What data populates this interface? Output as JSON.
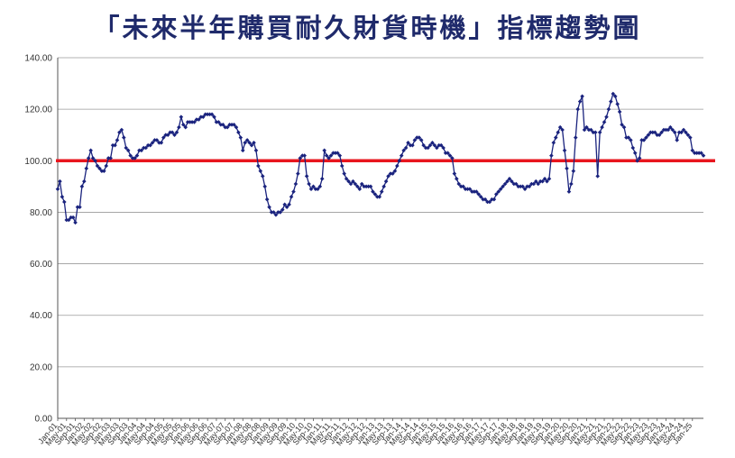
{
  "chart_data": {
    "type": "line",
    "title": "「未來半年購買耐久財貨時機」指標趨勢圖",
    "xlabel": "",
    "ylabel": "",
    "ylim": [
      0,
      140
    ],
    "y_ticks": [
      "0.00",
      "20.00",
      "40.00",
      "60.00",
      "80.00",
      "100.00",
      "120.00",
      "140.00"
    ],
    "x_tick_labels": [
      "Jan-01",
      "May-01",
      "Sep-01",
      "Jan-02",
      "May-02",
      "Sep-02",
      "Jan-03",
      "May-03",
      "Sep-03",
      "Jan-04",
      "May-04",
      "Sep-04",
      "Jan-05",
      "May-05",
      "Sep-05",
      "Jan-06",
      "May-06",
      "Sep-06",
      "Jan-07",
      "May-07",
      "Sep-07",
      "Jan-08",
      "May-08",
      "Sep-08",
      "Jan-09",
      "May-09",
      "Sep-09",
      "Jan-10",
      "May-10",
      "Sep-10",
      "Jan-11",
      "May-11",
      "Sep-11",
      "Jan-12",
      "May-12",
      "Sep-12",
      "Jan-13",
      "May-13",
      "Sep-13",
      "Jan-14",
      "May-14",
      "Sep-14",
      "Jan-15",
      "May-15",
      "Sep-15",
      "Jan-16",
      "May-16",
      "Sep-16",
      "Jan-17",
      "May-17",
      "Sep-17",
      "Jan-18",
      "May-18",
      "Sep-18",
      "Jan-19",
      "May-19",
      "Sep-19",
      "Jan-20",
      "May-20",
      "Sep-20",
      "Jan-21",
      "May-21",
      "Sep-21",
      "Jan-22",
      "May-22",
      "Sep-22",
      "Jan-23",
      "May-23",
      "Sep-23",
      "Jan-24",
      "May-24",
      "Sep-24",
      "Jan-25"
    ],
    "reference_line": {
      "y": 100,
      "color": "#e8161e"
    },
    "grid": true,
    "legend": "none",
    "series": [
      {
        "color": "#1a237e",
        "start": "2001-01",
        "frequency": "monthly",
        "values": [
          89,
          92,
          86,
          84,
          77,
          77,
          78,
          78,
          76,
          82,
          82,
          90,
          92,
          97,
          101,
          104,
          101,
          100,
          98,
          97,
          96,
          96,
          98,
          101,
          101,
          106,
          106,
          108,
          111,
          112,
          109,
          105,
          104,
          102,
          101,
          101,
          102,
          104,
          104,
          105,
          105,
          106,
          106,
          107,
          108,
          108,
          107,
          107,
          109,
          110,
          110,
          111,
          111,
          110,
          111,
          113,
          117,
          114,
          113,
          115,
          115,
          115,
          115,
          116,
          116,
          117,
          117,
          118,
          118,
          118,
          118,
          117,
          115,
          115,
          114,
          114,
          113,
          113,
          114,
          114,
          114,
          113,
          111,
          109,
          104,
          107,
          108,
          107,
          106,
          107,
          104,
          98,
          96,
          94,
          90,
          85,
          82,
          80,
          80,
          79,
          80,
          80,
          81,
          83,
          82,
          83,
          86,
          88,
          91,
          95,
          101,
          102,
          102,
          94,
          91,
          89,
          90,
          89,
          89,
          90,
          93,
          104,
          102,
          101,
          102,
          103,
          103,
          103,
          102,
          98,
          95,
          93,
          92,
          91,
          92,
          91,
          90,
          89,
          91,
          90,
          90,
          90,
          90,
          88,
          87,
          86,
          86,
          88,
          90,
          92,
          94,
          95,
          95,
          96,
          98,
          100,
          102,
          104,
          105,
          107,
          106,
          106,
          108,
          109,
          109,
          108,
          106,
          105,
          105,
          106,
          107,
          106,
          105,
          106,
          106,
          105,
          103,
          103,
          102,
          101,
          95,
          93,
          91,
          90,
          90,
          89,
          89,
          89,
          88,
          88,
          88,
          87,
          86,
          85,
          85,
          84,
          84,
          85,
          85,
          87,
          88,
          89,
          90,
          91,
          92,
          93,
          92,
          91,
          91,
          90,
          90,
          90,
          89,
          90,
          90,
          91,
          91,
          92,
          91,
          92,
          92,
          93,
          92,
          93,
          102,
          107,
          109,
          111,
          113,
          112,
          104,
          97,
          88,
          91,
          96,
          109,
          120,
          123,
          125,
          112,
          113,
          112,
          112,
          111,
          111,
          94,
          111,
          113,
          115,
          117,
          120,
          123,
          126,
          125,
          122,
          119,
          114,
          113,
          109,
          109,
          108,
          105,
          103,
          100,
          101,
          108,
          108,
          109,
          110,
          111,
          111,
          111,
          110,
          110,
          111,
          112,
          112,
          112,
          113,
          112,
          111,
          108,
          111,
          111,
          112,
          111,
          110,
          109,
          104,
          103,
          103,
          103,
          103,
          102
        ]
      }
    ]
  }
}
